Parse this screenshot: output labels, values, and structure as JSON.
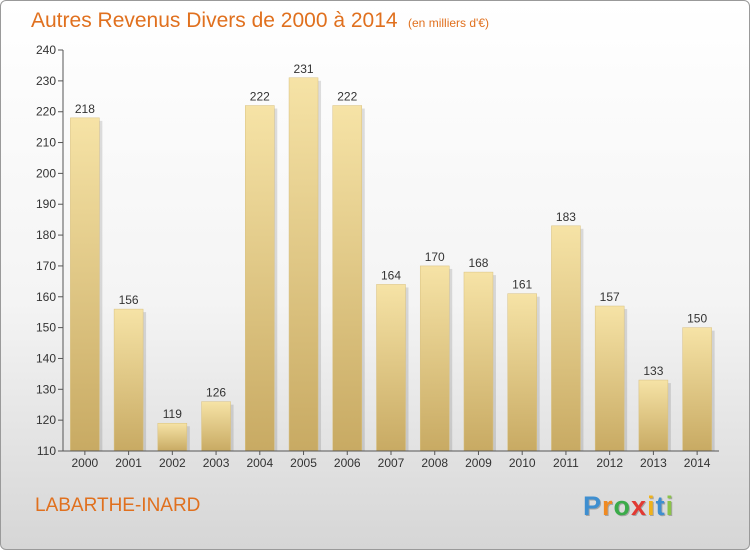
{
  "chart_data": {
    "type": "bar",
    "title": "Autres Revenus Divers de 2000 à 2014",
    "unit_note": "(en milliers d'€)",
    "categories": [
      "2000",
      "2001",
      "2002",
      "2003",
      "2004",
      "2005",
      "2006",
      "2007",
      "2008",
      "2009",
      "2010",
      "2011",
      "2012",
      "2013",
      "2014"
    ],
    "values": [
      218,
      156,
      119,
      126,
      222,
      231,
      222,
      164,
      170,
      168,
      161,
      183,
      157,
      133,
      150
    ],
    "ylim": [
      110,
      240
    ],
    "yticks": [
      110,
      120,
      130,
      140,
      150,
      160,
      170,
      180,
      190,
      200,
      210,
      220,
      230,
      240
    ],
    "grid": false,
    "colors": {
      "bar_light": "#f6e3a6",
      "bar_dark": "#c8aa63",
      "title": "#e0701e"
    }
  },
  "footer": {
    "city": "LABARTHE-INARD",
    "logo_letters": [
      "P",
      "r",
      "o",
      "x",
      "i",
      "t",
      "i"
    ],
    "logo_colors": [
      "#3f8fd0",
      "#f08a22",
      "#3bab4a",
      "#e23a33",
      "#f0b21b",
      "#3f8fd0",
      "#8bc34a"
    ]
  }
}
